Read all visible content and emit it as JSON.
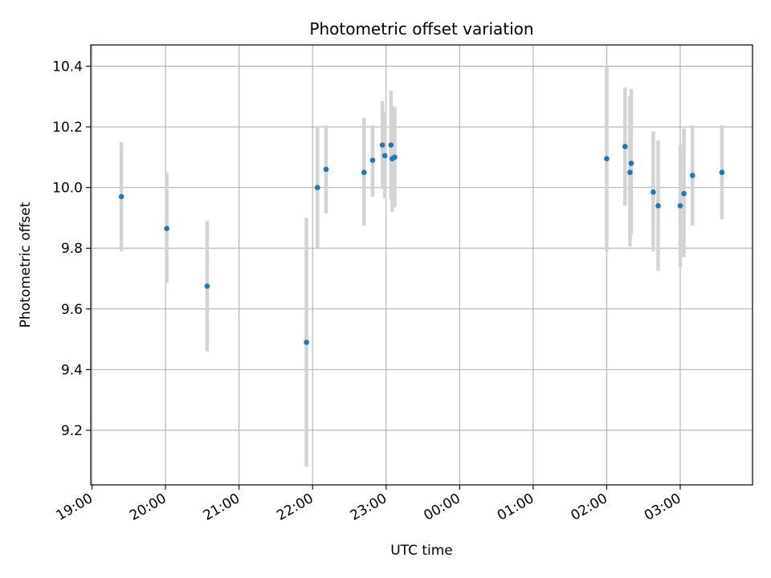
{
  "chart_data": {
    "type": "scatter",
    "title": "Photometric offset variation",
    "xlabel": "UTC time",
    "ylabel": "Photometric offset",
    "x_is_time": true,
    "x_tick_labels": [
      "19:00",
      "20:00",
      "21:00",
      "22:00",
      "23:00",
      "00:00",
      "01:00",
      "02:00",
      "03:00"
    ],
    "x_ticks": [
      "19:00",
      "20:00",
      "21:00",
      "22:00",
      "23:00",
      "24:00",
      "25:00",
      "26:00",
      "27:00"
    ],
    "xlim": [
      "18:59",
      "27:59"
    ],
    "ylim": [
      9.02,
      10.47
    ],
    "y_ticks": [
      9.2,
      9.4,
      9.6,
      9.8,
      10.0,
      10.2,
      10.4
    ],
    "y_tick_labels": [
      "9.2",
      "9.4",
      "9.6",
      "9.8",
      "10.0",
      "10.2",
      "10.4"
    ],
    "grid": true,
    "marker_color": "#1f77b4",
    "errorbar_color": "#d3d3d3",
    "points": [
      {
        "time": "19:24",
        "y": 9.97,
        "ylow": 9.79,
        "yhigh": 10.15
      },
      {
        "time": "20:01",
        "y": 9.865,
        "ylow": 9.685,
        "yhigh": 10.05
      },
      {
        "time": "20:34",
        "y": 9.675,
        "ylow": 9.46,
        "yhigh": 9.89
      },
      {
        "time": "21:55",
        "y": 9.49,
        "ylow": 9.08,
        "yhigh": 9.9
      },
      {
        "time": "22:04",
        "y": 10.0,
        "ylow": 9.8,
        "yhigh": 10.2
      },
      {
        "time": "22:11",
        "y": 10.06,
        "ylow": 9.915,
        "yhigh": 10.205
      },
      {
        "time": "22:42",
        "y": 10.05,
        "ylow": 9.875,
        "yhigh": 10.23
      },
      {
        "time": "22:49",
        "y": 10.09,
        "ylow": 9.97,
        "yhigh": 10.205
      },
      {
        "time": "22:57",
        "y": 10.14,
        "ylow": 9.995,
        "yhigh": 10.285
      },
      {
        "time": "22:59",
        "y": 10.105,
        "ylow": 9.965,
        "yhigh": 10.25
      },
      {
        "time": "23:04",
        "y": 10.14,
        "ylow": 9.96,
        "yhigh": 10.32
      },
      {
        "time": "23:05",
        "y": 10.095,
        "ylow": 9.92,
        "yhigh": 10.27
      },
      {
        "time": "23:07",
        "y": 10.1,
        "ylow": 9.935,
        "yhigh": 10.265
      },
      {
        "time": "26:00",
        "y": 10.095,
        "ylow": 9.79,
        "yhigh": 10.4
      },
      {
        "time": "26:15",
        "y": 10.135,
        "ylow": 9.94,
        "yhigh": 10.33
      },
      {
        "time": "26:19",
        "y": 10.05,
        "ylow": 9.805,
        "yhigh": 10.3
      },
      {
        "time": "26:20",
        "y": 10.08,
        "ylow": 9.845,
        "yhigh": 10.325
      },
      {
        "time": "26:38",
        "y": 9.985,
        "ylow": 9.79,
        "yhigh": 10.185
      },
      {
        "time": "26:42",
        "y": 9.94,
        "ylow": 9.725,
        "yhigh": 10.155
      },
      {
        "time": "27:00",
        "y": 9.94,
        "ylow": 9.74,
        "yhigh": 10.14
      },
      {
        "time": "27:03",
        "y": 9.98,
        "ylow": 9.77,
        "yhigh": 10.195
      },
      {
        "time": "27:10",
        "y": 10.04,
        "ylow": 9.875,
        "yhigh": 10.205
      },
      {
        "time": "27:34",
        "y": 10.05,
        "ylow": 9.895,
        "yhigh": 10.205
      }
    ]
  }
}
